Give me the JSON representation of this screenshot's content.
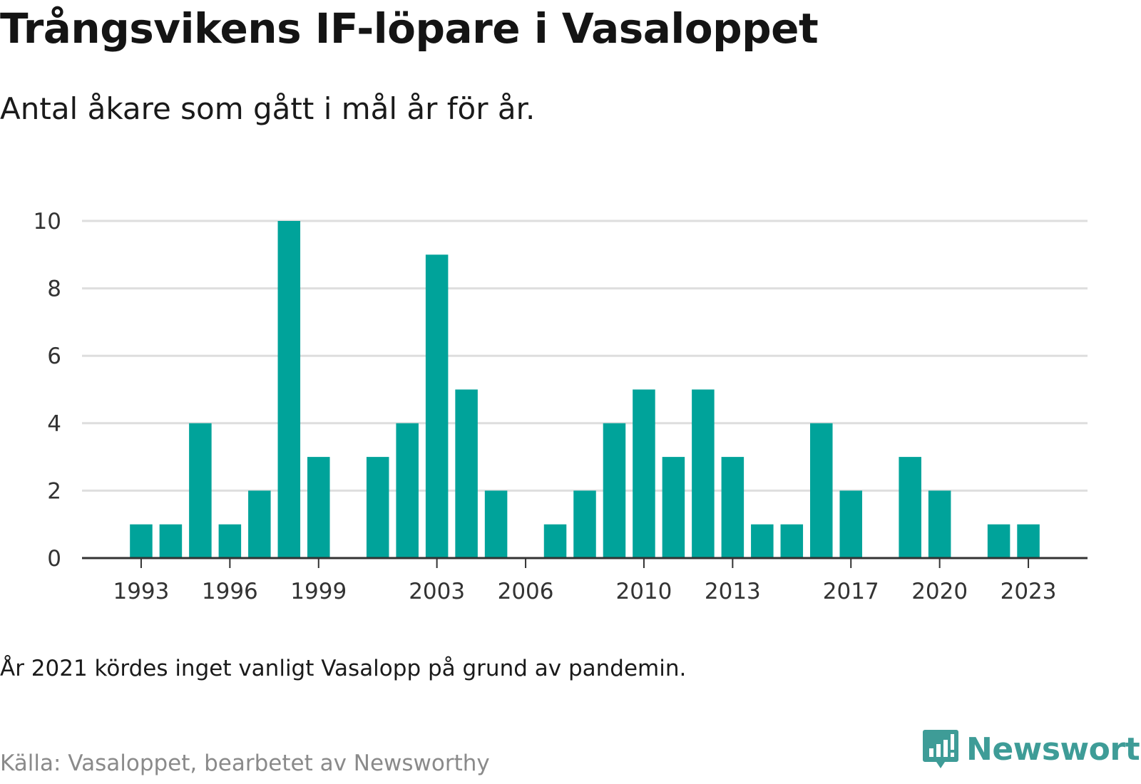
{
  "header": {
    "title": "Trångsvikens IF-löpare i Vasaloppet",
    "subtitle": "Antal åkare som gått i mål år för år."
  },
  "footer": {
    "note": "År 2021 kördes inget vanligt Vasalopp på grund av pandemin.",
    "source": "Källa: Vasaloppet, bearbetet av Newsworthy",
    "brand": "Newsworthy"
  },
  "colors": {
    "bar": "#00a39a",
    "gridline": "#dedede",
    "axis": "#333333",
    "brand": "#3e9c97"
  },
  "icons": {
    "brand_logo": "newsworthy-logo-icon"
  },
  "chart_data": {
    "type": "bar",
    "title": "Trångsvikens IF-löpare i Vasaloppet",
    "subtitle": "Antal åkare som gått i mål år för år.",
    "xlabel": "",
    "ylabel": "",
    "ylim": [
      0,
      10
    ],
    "yticks": [
      0,
      2,
      4,
      6,
      8,
      10
    ],
    "xticks": [
      1993,
      1996,
      1999,
      2003,
      2006,
      2010,
      2013,
      2017,
      2020,
      2023
    ],
    "xlim": [
      1991,
      2025
    ],
    "grid": true,
    "x": [
      1993,
      1994,
      1995,
      1996,
      1997,
      1998,
      1999,
      2001,
      2002,
      2003,
      2004,
      2005,
      2007,
      2008,
      2009,
      2010,
      2011,
      2012,
      2013,
      2014,
      2015,
      2016,
      2017,
      2019,
      2020,
      2022,
      2023
    ],
    "values": [
      1,
      1,
      4,
      1,
      2,
      10,
      3,
      3,
      4,
      9,
      5,
      2,
      1,
      2,
      4,
      5,
      3,
      5,
      3,
      1,
      1,
      4,
      2,
      3,
      2,
      1,
      1
    ]
  }
}
